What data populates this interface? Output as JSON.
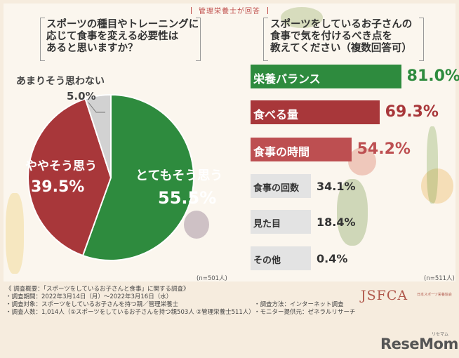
{
  "header": {
    "tag": "管理栄養士が回答"
  },
  "left_question": "スポーツの種目やトレーニングに\n応じて食事を変える必要性は\nあると思いますか？",
  "right_question": "スポーツをしているお子さんの\n食事で気を付けるべき点を\n教えてください（複数回答可）",
  "left_n": "(n=501人)",
  "right_n": "(n=511人)",
  "colors": {
    "green": "#2e8b3e",
    "red": "#a8373a",
    "gray": "#d2d2d2",
    "bar_gray": "#e3e3e3",
    "bar_red_1": "#a8373a",
    "bar_red_2": "#b8464a",
    "bar_red_3": "#c65c5c"
  },
  "chart_data": [
    {
      "type": "pie",
      "slices": [
        {
          "label": "とてもそう思う",
          "value": 55.5,
          "display": "55.5%",
          "color": "#2e8b3e"
        },
        {
          "label": "ややそう思う",
          "value": 39.5,
          "display": "39.5%",
          "color": "#a8373a"
        },
        {
          "label": "あまりそう思わない",
          "value": 5.0,
          "display": "5.0%",
          "color": "#d2d2d2"
        }
      ]
    },
    {
      "type": "bar",
      "orientation": "horizontal",
      "categories": [
        "栄養バランス",
        "食べる量",
        "食事の時間",
        "食事の回数",
        "見た目",
        "その他"
      ],
      "values": [
        81.0,
        69.3,
        54.2,
        34.1,
        18.4,
        0.4
      ],
      "display": [
        "81.0%",
        "69.3%",
        "54.2%",
        "34.1%",
        "18.4%",
        "0.4%"
      ],
      "colors": [
        "#2e8b3e",
        "#a8373a",
        "#bd4f51",
        "#e3e3e3",
        "#e3e3e3",
        "#e3e3e3"
      ]
    }
  ],
  "footer": {
    "title": "《 調査概要：「スポーツをしているお子さんと食事」に関する調査》",
    "lines": [
      "・調査期間：2022年3月14日（月）〜2022年3月16日（水）",
      "・調査対象：スポーツをしているお子さんを持つ親／管理栄養士",
      "・調査人数：1,014人（①スポーツをしているお子さんを持つ親503人 ②管理栄養士511人）"
    ],
    "method": "・調査方法：インターネット調査",
    "provider": "・モニター提供元：ゼネラルリサーチ"
  },
  "logo": {
    "name": "JSFCA",
    "sub": "日本スポーツ栄養協会"
  },
  "brand": {
    "name": "ReseMom",
    "reading": "リセマム"
  }
}
